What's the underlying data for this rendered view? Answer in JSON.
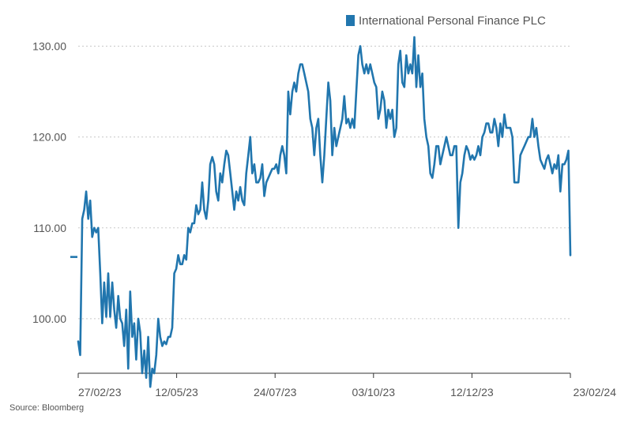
{
  "chart_data": {
    "type": "line",
    "title": "",
    "xlabel": "",
    "ylabel": "",
    "ylim": [
      94,
      131
    ],
    "grid": true,
    "legend_position": "top-right",
    "y_ticks": [
      "100.00",
      "110.00",
      "120.00",
      "130.00"
    ],
    "y_tick_values": [
      100,
      110,
      120,
      130
    ],
    "x_ticks": [
      "27/02/23",
      "12/05/23",
      "24/07/23",
      "03/10/23",
      "12/12/23",
      "23/02/24"
    ],
    "series": [
      {
        "name": "International Personal Finance PLC",
        "color": "#2176ae",
        "values": [
          97.5,
          96.0,
          111.0,
          112.0,
          114.0,
          111.0,
          113.0,
          109.0,
          110.0,
          109.5,
          110.0,
          105.0,
          99.5,
          104.0,
          100.2,
          105.0,
          100.2,
          104.0,
          101.0,
          99.0,
          102.5,
          100.0,
          99.5,
          97.0,
          101.0,
          94.5,
          103.0,
          98.0,
          99.5,
          95.5,
          100.0,
          98.5,
          94.0,
          96.5,
          93.5,
          98.0,
          92.5,
          94.5,
          94.0,
          96.0,
          100.0,
          98.0,
          97.0,
          97.5,
          97.2,
          98.0,
          98.0,
          99.0,
          105.0,
          105.5,
          107.0,
          106.0,
          106.0,
          107.0,
          106.5,
          110.0,
          109.5,
          110.5,
          110.5,
          112.5,
          111.5,
          112.0,
          115.0,
          112.0,
          111.0,
          113.0,
          117.0,
          117.8,
          117.0,
          114.0,
          113.0,
          116.0,
          115.0,
          117.0,
          118.5,
          118.0,
          116.0,
          114.0,
          112.0,
          114.0,
          113.0,
          114.5,
          113.0,
          112.5,
          116.0,
          118.0,
          120.0,
          116.0,
          117.0,
          115.0,
          115.0,
          115.5,
          117.0,
          113.5,
          115.0,
          115.5,
          116.0,
          116.5,
          116.5,
          117.0,
          116.0,
          118.0,
          119.0,
          118.0,
          116.0,
          125.0,
          122.5,
          125.0,
          126.0,
          125.0,
          127.0,
          128.0,
          128.0,
          127.0,
          126.0,
          125.0,
          122.0,
          121.0,
          118.0,
          121.0,
          122.0,
          118.0,
          115.0,
          118.0,
          122.0,
          126.0,
          124.0,
          118.0,
          121.0,
          119.0,
          120.0,
          121.0,
          122.0,
          124.5,
          121.5,
          122.0,
          121.0,
          122.0,
          121.0,
          125.0,
          129.0,
          130.0,
          128.0,
          127.0,
          128.0,
          127.0,
          128.0,
          127.0,
          126.0,
          125.5,
          122.0,
          123.0,
          125.0,
          124.0,
          121.0,
          123.0,
          122.0,
          123.0,
          120.0,
          121.0,
          128.0,
          129.5,
          126.0,
          125.5,
          129.0,
          127.0,
          128.0,
          127.0,
          131.0,
          125.5,
          129.0,
          125.5,
          127.0,
          122.0,
          120.0,
          119.0,
          116.0,
          115.5,
          117.0,
          119.0,
          119.0,
          117.0,
          118.0,
          119.0,
          120.0,
          119.0,
          118.0,
          118.0,
          119.0,
          119.0,
          110.0,
          115.0,
          116.0,
          118.0,
          119.0,
          118.5,
          117.5,
          118.0,
          117.5,
          118.0,
          119.0,
          118.0,
          120.0,
          120.5,
          121.5,
          121.5,
          120.5,
          120.5,
          122.0,
          121.0,
          119.0,
          121.5,
          120.0,
          122.5,
          121.0,
          121.0,
          121.0,
          120.0,
          115.0,
          115.0,
          115.0,
          118.0,
          118.5,
          119.0,
          119.5,
          120.0,
          120.0,
          122.0,
          120.0,
          121.0,
          119.0,
          117.5,
          117.0,
          116.5,
          117.5,
          118.0,
          117.0,
          116.0,
          117.0,
          116.5,
          118.0,
          114.0,
          117.0,
          117.0,
          117.5,
          118.5,
          107.0
        ]
      }
    ]
  },
  "legend": {
    "label": "International Personal Finance PLC",
    "color": "#2176ae"
  },
  "footer": {
    "source": "Source: Bloomberg"
  }
}
